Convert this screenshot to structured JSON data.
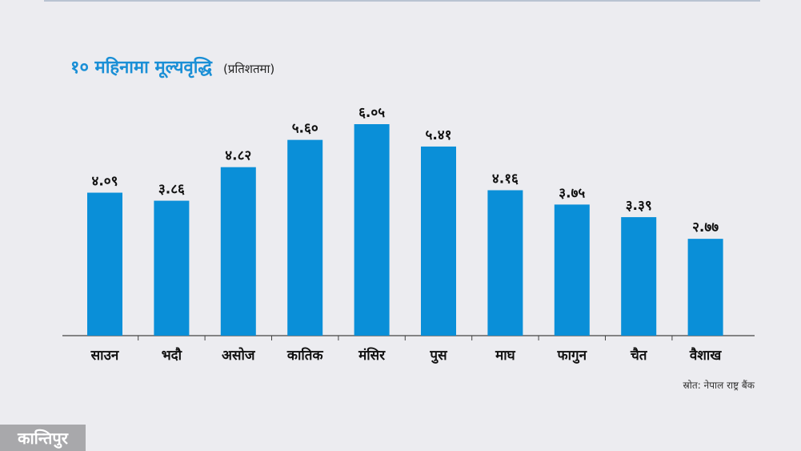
{
  "header": {
    "title": "१० महिनामा मूल्यवृद्धि",
    "subtitle": "(प्रतिशतमा)"
  },
  "footer": {
    "source": "स्रोत: नेपाल राष्ट्र बैंक",
    "brand": "कान्तिपुर"
  },
  "colors": {
    "bar": "#0a8fd8",
    "title": "#1a8fd6",
    "background": "#ececf0"
  },
  "chart_data": {
    "type": "bar",
    "title": "१० महिनामा मूल्यवृद्धि",
    "subtitle": "(प्रतिशतमा)",
    "categories": [
      "साउन",
      "भदौ",
      "असोज",
      "कातिक",
      "मंसिर",
      "पुस",
      "माघ",
      "फागुन",
      "चैत",
      "वैशाख"
    ],
    "values": [
      4.09,
      3.86,
      4.82,
      5.6,
      6.05,
      5.41,
      4.16,
      3.75,
      3.39,
      2.77
    ],
    "value_labels": [
      "४.०९",
      "३.८६",
      "४.८२",
      "५.६०",
      "६.०५",
      "५.४१",
      "४.१६",
      "३.७५",
      "३.३९",
      "२.७७"
    ],
    "ylim": [
      0,
      6.05
    ],
    "grid": false,
    "legend": "none"
  }
}
